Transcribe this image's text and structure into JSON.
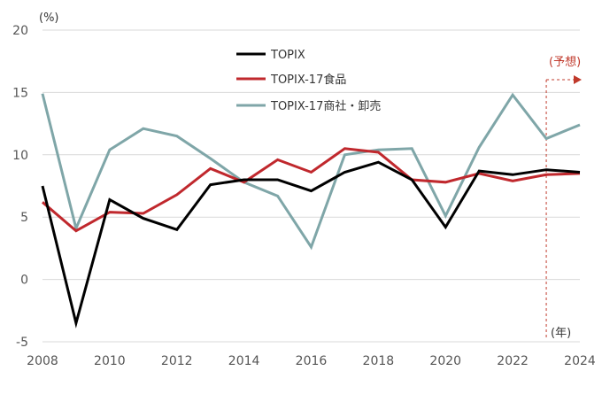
{
  "chart_data": {
    "type": "line",
    "y_unit": "(%)",
    "x_unit": "(年)",
    "x": [
      2008,
      2009,
      2010,
      2011,
      2012,
      2013,
      2014,
      2015,
      2016,
      2017,
      2018,
      2019,
      2020,
      2021,
      2022,
      2023,
      2024
    ],
    "x_tick_labels": [
      "2008",
      "2010",
      "2012",
      "2014",
      "2016",
      "2018",
      "2020",
      "2022",
      "2024"
    ],
    "x_ticks": [
      2008,
      2010,
      2012,
      2014,
      2016,
      2018,
      2020,
      2022,
      2024
    ],
    "xlim": [
      2008,
      2024
    ],
    "ylim": [
      -5,
      20
    ],
    "y_ticks": [
      -5,
      0,
      5,
      10,
      15,
      20
    ],
    "y_tick_labels": [
      "-5",
      "0",
      "5",
      "10",
      "15",
      "20"
    ],
    "grid": "horizontal",
    "forecast": {
      "label": "(予想)",
      "start": 2023,
      "end": 2024,
      "color": "#c0392b"
    },
    "series": [
      {
        "name": "TOPIX",
        "color": "#000000",
        "values": [
          7.5,
          -3.5,
          6.4,
          4.9,
          4.0,
          7.6,
          8.0,
          8.0,
          7.1,
          8.6,
          9.4,
          8.0,
          4.2,
          8.7,
          8.4,
          8.8,
          8.6
        ]
      },
      {
        "name": "TOPIX-17食品",
        "color": "#c0282d",
        "values": [
          6.2,
          3.9,
          5.4,
          5.3,
          6.8,
          8.9,
          7.8,
          9.6,
          8.6,
          10.5,
          10.2,
          8.0,
          7.8,
          8.5,
          7.9,
          8.4,
          8.5
        ]
      },
      {
        "name": "TOPIX-17商社・卸売",
        "color": "#7fa6a8",
        "values": [
          14.9,
          4.1,
          10.4,
          12.1,
          11.5,
          9.7,
          7.8,
          6.7,
          2.6,
          10.0,
          10.4,
          10.5,
          5.1,
          10.6,
          14.8,
          11.3,
          12.4
        ]
      }
    ]
  }
}
